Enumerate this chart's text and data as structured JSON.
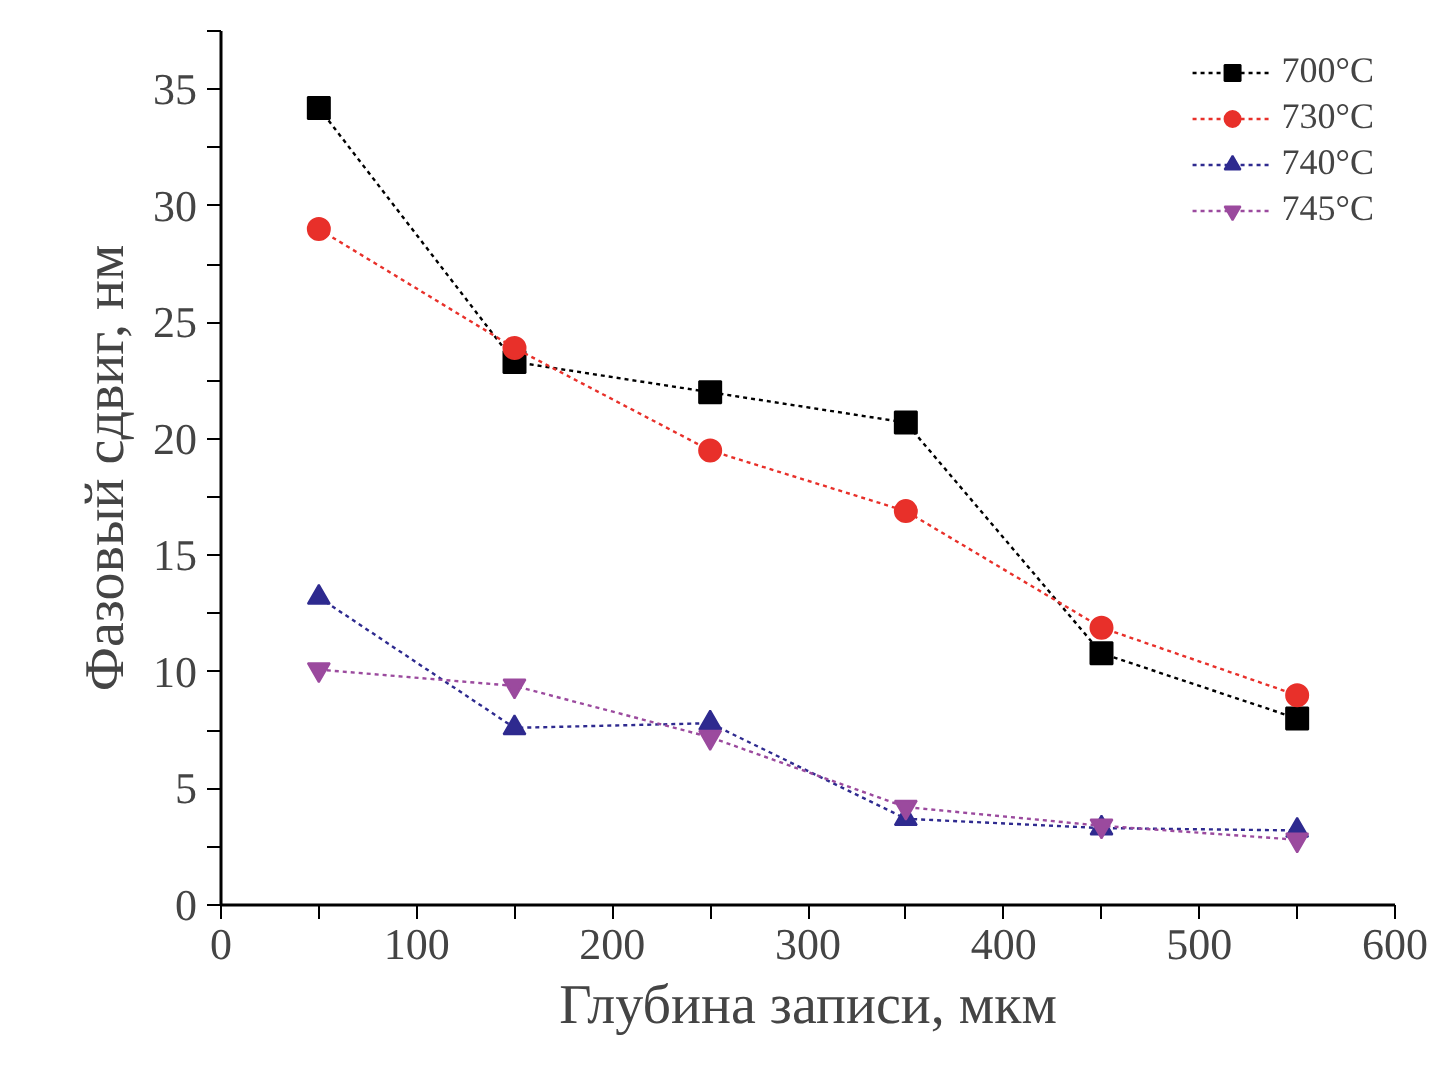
{
  "chart_data": {
    "type": "line",
    "xlabel": "Глубина записи, мкм",
    "ylabel": "Фазовый сдвиг, нм",
    "x": [
      50,
      150,
      250,
      350,
      450,
      550
    ],
    "series": [
      {
        "name": "700°C",
        "color": "#000000",
        "marker": "square",
        "values": [
          34.2,
          23.3,
          22.0,
          20.7,
          10.8,
          8.0
        ]
      },
      {
        "name": "730°C",
        "color": "#e8302a",
        "marker": "circle",
        "values": [
          29.0,
          23.9,
          19.5,
          16.9,
          11.9,
          9.0
        ]
      },
      {
        "name": "740°C",
        "color": "#2e2a8f",
        "marker": "triangle",
        "values": [
          13.2,
          7.6,
          7.8,
          3.7,
          3.3,
          3.2
        ]
      },
      {
        "name": "745°C",
        "color": "#9b4a9e",
        "marker": "triangle",
        "values": [
          10.1,
          9.4,
          7.2,
          4.2,
          3.4,
          2.8
        ]
      }
    ],
    "xlim": [
      0,
      600
    ],
    "ylim": [
      0,
      37.5
    ],
    "xticks": [
      0,
      {
        "value": 50,
        "label": null
      },
      100,
      {
        "value": 150,
        "label": null
      },
      200,
      {
        "value": 250,
        "label": null
      },
      300,
      {
        "value": 350,
        "label": null
      },
      400,
      {
        "value": 450,
        "label": null
      },
      500,
      {
        "value": 550,
        "label": null
      },
      600
    ],
    "yticks": [
      0,
      {
        "value": 2.5,
        "label": null
      },
      5,
      {
        "value": 7.5,
        "label": null
      },
      10,
      {
        "value": 12.5,
        "label": null
      },
      15,
      {
        "value": 17.5,
        "label": null
      },
      20,
      {
        "value": 22.5,
        "label": null
      },
      25,
      {
        "value": 27.5,
        "label": null
      },
      30,
      {
        "value": 32.5,
        "label": null
      },
      35,
      {
        "value": 37.5,
        "label": null
      }
    ],
    "grid": false,
    "legend": "top right",
    "line_style": "dotted"
  }
}
